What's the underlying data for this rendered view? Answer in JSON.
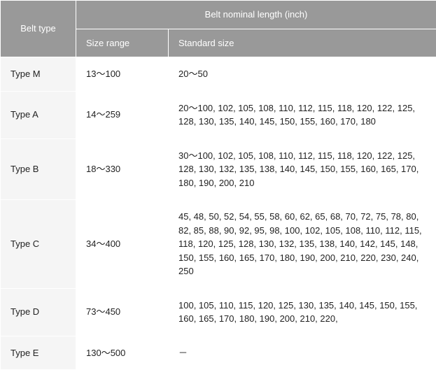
{
  "table": {
    "header_bg": "#999999",
    "header_fg": "#ffffff",
    "cell_bg_alt": "#f5f5f5",
    "cell_bg": "#ffffff",
    "cell_fg": "#222222",
    "border_color": "#ffffff",
    "font_size": 13,
    "columns": {
      "belt_type": "Belt type",
      "nominal_length": "Belt nominal length (inch)",
      "size_range": "Size range",
      "standard_size": "Standard size"
    },
    "rows": [
      {
        "type": "Type M",
        "range": "13～100",
        "std": "20～50"
      },
      {
        "type": "Type A",
        "range": "14～259",
        "std": "20～100, 102, 105, 108, 110, 112, 115, 118, 120, 122, 125, 128, 130, 135, 140, 145, 150, 155, 160, 170, 180"
      },
      {
        "type": "Type B",
        "range": "18～330",
        "std": "30～100, 102, 105, 108, 110, 112, 115, 118, 120, 122, 125, 128, 130, 132, 135, 138, 140, 145, 150, 155, 160, 165, 170, 180, 190, 200, 210"
      },
      {
        "type": "Type C",
        "range": "34～400",
        "std": "45, 48, 50, 52, 54, 55, 58, 60, 62, 65, 68, 70, 72, 75, 78, 80, 82, 85, 88, 90, 92, 95, 98, 100, 102, 105, 108, 110, 112, 115, 118, 120, 125, 128, 130, 132, 135, 138, 140, 142, 145, 148, 150, 155, 160, 165, 170, 180, 190, 200, 210, 220, 230, 240, 250"
      },
      {
        "type": "Type D",
        "range": "73～450",
        "std": "100, 105, 110, 115, 120, 125, 130, 135, 140, 145, 150, 155, 160, 165, 170, 180, 190, 200, 210, 220,"
      },
      {
        "type": "Type E",
        "range": "130～500",
        "std": "－"
      }
    ]
  }
}
